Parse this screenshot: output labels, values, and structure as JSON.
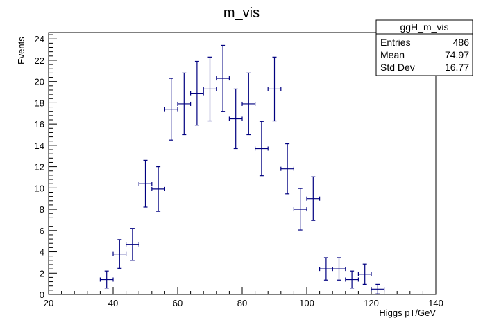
{
  "chart_data": {
    "type": "scatter",
    "title": "m_vis",
    "xlabel": "Higgs pT/GeV",
    "ylabel": "Events",
    "xlim": [
      20,
      140
    ],
    "ylim": [
      0,
      24.6
    ],
    "x_ticks": [
      20,
      40,
      60,
      80,
      100,
      120,
      140
    ],
    "y_ticks": [
      0,
      2,
      4,
      6,
      8,
      10,
      12,
      14,
      16,
      18,
      20,
      22,
      24
    ],
    "x_tick_labels": [
      "20",
      "40",
      "60",
      "80",
      "100",
      "120",
      "140"
    ],
    "y_tick_labels": [
      "0",
      "2",
      "4",
      "6",
      "8",
      "10",
      "12",
      "14",
      "16",
      "18",
      "20",
      "22",
      "24"
    ],
    "bin_width": 4,
    "series": [
      {
        "x": [
          38,
          42,
          46,
          50,
          54,
          58,
          62,
          66,
          70,
          74,
          78,
          82,
          86,
          90,
          94,
          98,
          102,
          106,
          110,
          114,
          118,
          122
        ],
        "y": [
          1.4,
          3.8,
          4.7,
          10.4,
          9.9,
          17.4,
          17.9,
          18.9,
          19.3,
          20.3,
          16.5,
          17.9,
          13.7,
          19.3,
          11.8,
          8.0,
          9.0,
          2.4,
          2.4,
          1.4,
          1.9,
          0.5
        ],
        "y_err": [
          0.8,
          1.35,
          1.5,
          2.2,
          2.1,
          2.9,
          2.9,
          3.0,
          3.0,
          3.1,
          2.8,
          2.9,
          2.55,
          3.0,
          2.35,
          1.95,
          2.05,
          1.05,
          1.05,
          0.8,
          0.95,
          0.45
        ],
        "color": "#000080"
      }
    ],
    "stats_box": {
      "name": "ggH_m_vis",
      "rows": [
        {
          "label": "Entries",
          "value": "486"
        },
        {
          "label": "Mean",
          "value": "74.97"
        },
        {
          "label": "Std Dev",
          "value": "16.77"
        }
      ]
    },
    "grid": false,
    "legend": "top-right"
  }
}
